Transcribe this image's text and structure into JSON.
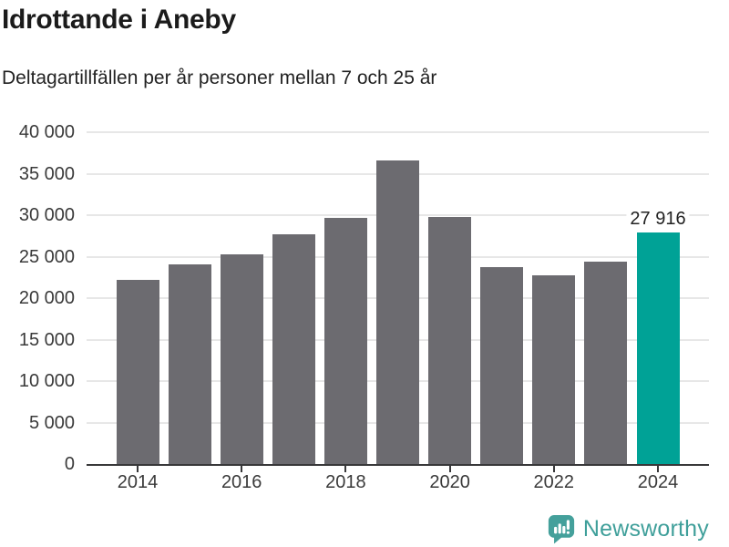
{
  "header": {
    "title": "Idrottande i Aneby",
    "subtitle": "Deltagartillfällen per år personer mellan 7 och 25 år"
  },
  "chart_data": {
    "type": "bar",
    "title": "Idrottande i Aneby",
    "subtitle": "Deltagartillfällen per år personer mellan 7 och 25 år",
    "categories": [
      "2014",
      "2015",
      "2016",
      "2017",
      "2018",
      "2019",
      "2020",
      "2021",
      "2022",
      "2023",
      "2024"
    ],
    "values": [
      22150,
      24050,
      25300,
      27650,
      29650,
      36600,
      29800,
      23700,
      22750,
      24450,
      27916
    ],
    "highlight_index": 10,
    "annotation": {
      "text": "27 916",
      "category": "2024"
    },
    "xlabel": "",
    "ylabel": "",
    "ylim": [
      0,
      40000
    ],
    "yticks": [
      0,
      5000,
      10000,
      15000,
      20000,
      25000,
      30000,
      35000,
      40000
    ],
    "ytick_labels": [
      "0",
      "5 000",
      "10 000",
      "15 000",
      "20 000",
      "25 000",
      "30 000",
      "35 000",
      "40 000"
    ],
    "xtick_labels": [
      "2014",
      "2016",
      "2018",
      "2020",
      "2022",
      "2024"
    ],
    "grid": true,
    "legend": false,
    "bar_color": "#6c6b70",
    "highlight_color": "#00a296",
    "grid_color": "#e7e7e7",
    "axis_color": "#38383a",
    "tick_label_color": "#3a3a3a",
    "annotation_color": "#222222"
  },
  "footer": {
    "brand": "Newsworthy",
    "brand_color": "#3f9f9a",
    "logo_icon": "newsworthy-speech-bubble-bar-chart-icon",
    "logo_color": "#44a09b"
  }
}
